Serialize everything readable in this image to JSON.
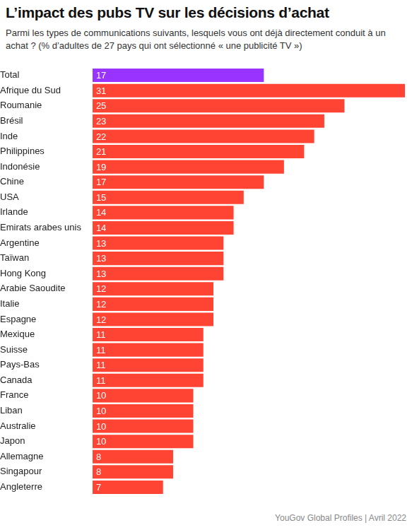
{
  "chart_data": {
    "type": "bar",
    "orientation": "horizontal",
    "title": "L’impact des pubs TV sur les décisions d’achat",
    "subtitle": "Parmi les types de communications suivants, lesquels vous ont déjà directement conduit à un achat ? (% d’adultes de 27 pays qui ont sélectionné « une publicité TV »)",
    "source": "YouGov Global Profiles | Avril 2022",
    "categories": [
      "Total",
      "Afrique du Sud",
      "Roumanie",
      "Brésil",
      "Inde",
      "Philippines",
      "Indonésie",
      "Chine",
      "USA",
      "Irlande",
      "Emirats arabes unis",
      "Argentine",
      "Taïwan",
      "Hong Kong",
      "Arabie Saoudite",
      "Italie",
      "Espagne",
      "Mexique",
      "Suisse",
      "Pays-Bas",
      "Canada",
      "France",
      "Liban",
      "Australie",
      "Japon",
      "Allemagne",
      "Singapour",
      "Angleterre"
    ],
    "values": [
      17,
      31,
      25,
      23,
      22,
      21,
      19,
      17,
      15,
      14,
      14,
      13,
      13,
      13,
      12,
      12,
      12,
      11,
      11,
      11,
      11,
      10,
      10,
      10,
      10,
      8,
      8,
      7
    ],
    "colors": [
      "#9933ff",
      "#ff4433",
      "#ff4433",
      "#ff4433",
      "#ff4433",
      "#ff4433",
      "#ff4433",
      "#ff4433",
      "#ff4433",
      "#ff4433",
      "#ff4433",
      "#ff4433",
      "#ff4433",
      "#ff4433",
      "#ff4433",
      "#ff4433",
      "#ff4433",
      "#ff4433",
      "#ff4433",
      "#ff4433",
      "#ff4433",
      "#ff4433",
      "#ff4433",
      "#ff4433",
      "#ff4433",
      "#ff4433",
      "#ff4433",
      "#ff4433"
    ],
    "xlim": [
      0,
      31
    ],
    "grid": false,
    "data_labels": true,
    "tick_labels": "y"
  }
}
